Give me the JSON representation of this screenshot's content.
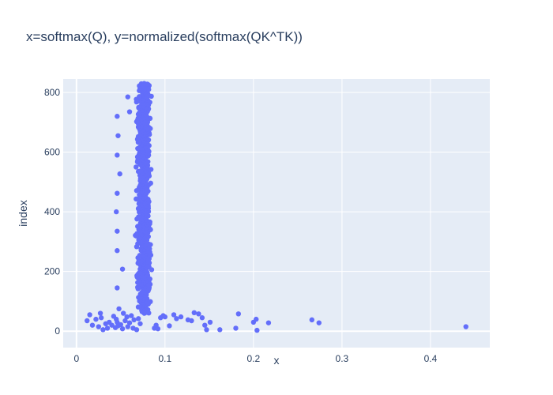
{
  "chart_data": {
    "type": "scatter",
    "title": "x=softmax(Q), y=normalized(softmax(QK^TK))",
    "xlabel": "x",
    "ylabel": "index",
    "xlim": [
      -0.015,
      0.467
    ],
    "ylim": [
      -55,
      845
    ],
    "x_ticks": [
      0,
      0.1,
      0.2,
      0.3,
      0.4
    ],
    "x_tick_labels": [
      "0",
      "0.1",
      "0.2",
      "0.3",
      "0.4"
    ],
    "y_ticks": [
      0,
      200,
      400,
      600,
      800
    ],
    "y_tick_labels": [
      "0",
      "200",
      "400",
      "600",
      "800"
    ],
    "grid": true,
    "colors": {
      "marker": "#636efa",
      "plot_bg": "#e5ecf6",
      "text": "#2a3f5f"
    },
    "series": [
      {
        "band_index_range": [
          60,
          830
        ],
        "band_x_range": [
          0.066,
          0.086
        ],
        "points": [
          [
            0.012,
            35
          ],
          [
            0.015,
            55
          ],
          [
            0.018,
            20
          ],
          [
            0.022,
            40
          ],
          [
            0.025,
            15
          ],
          [
            0.027,
            60
          ],
          [
            0.028,
            45
          ],
          [
            0.03,
            5
          ],
          [
            0.033,
            25
          ],
          [
            0.035,
            10
          ],
          [
            0.037,
            30
          ],
          [
            0.04,
            20
          ],
          [
            0.042,
            50
          ],
          [
            0.044,
            12
          ],
          [
            0.045,
            40
          ],
          [
            0.046,
            30
          ],
          [
            0.047,
            18
          ],
          [
            0.048,
            75
          ],
          [
            0.05,
            22
          ],
          [
            0.052,
            8
          ],
          [
            0.053,
            60
          ],
          [
            0.055,
            35
          ],
          [
            0.057,
            48
          ],
          [
            0.058,
            15
          ],
          [
            0.06,
            28
          ],
          [
            0.062,
            52
          ],
          [
            0.064,
            10
          ],
          [
            0.065,
            38
          ],
          [
            0.068,
            5
          ],
          [
            0.07,
            42
          ],
          [
            0.072,
            25
          ],
          [
            0.088,
            10
          ],
          [
            0.09,
            20
          ],
          [
            0.092,
            8
          ],
          [
            0.095,
            45
          ],
          [
            0.098,
            52
          ],
          [
            0.1,
            48
          ],
          [
            0.105,
            18
          ],
          [
            0.11,
            55
          ],
          [
            0.113,
            42
          ],
          [
            0.118,
            48
          ],
          [
            0.126,
            38
          ],
          [
            0.13,
            35
          ],
          [
            0.133,
            62
          ],
          [
            0.138,
            58
          ],
          [
            0.142,
            45
          ],
          [
            0.145,
            20
          ],
          [
            0.147,
            5
          ],
          [
            0.151,
            30
          ],
          [
            0.162,
            5
          ],
          [
            0.18,
            10
          ],
          [
            0.183,
            58
          ],
          [
            0.2,
            30
          ],
          [
            0.203,
            40
          ],
          [
            0.204,
            3
          ],
          [
            0.217,
            28
          ],
          [
            0.266,
            38
          ],
          [
            0.274,
            28
          ],
          [
            0.44,
            15
          ],
          [
            0.046,
            720
          ],
          [
            0.047,
            655
          ],
          [
            0.046,
            590
          ],
          [
            0.049,
            527
          ],
          [
            0.046,
            462
          ],
          [
            0.045,
            400
          ],
          [
            0.046,
            335
          ],
          [
            0.046,
            270
          ],
          [
            0.046,
            145
          ],
          [
            0.052,
            208
          ],
          [
            0.058,
            785
          ],
          [
            0.06,
            735
          ]
        ]
      }
    ]
  }
}
